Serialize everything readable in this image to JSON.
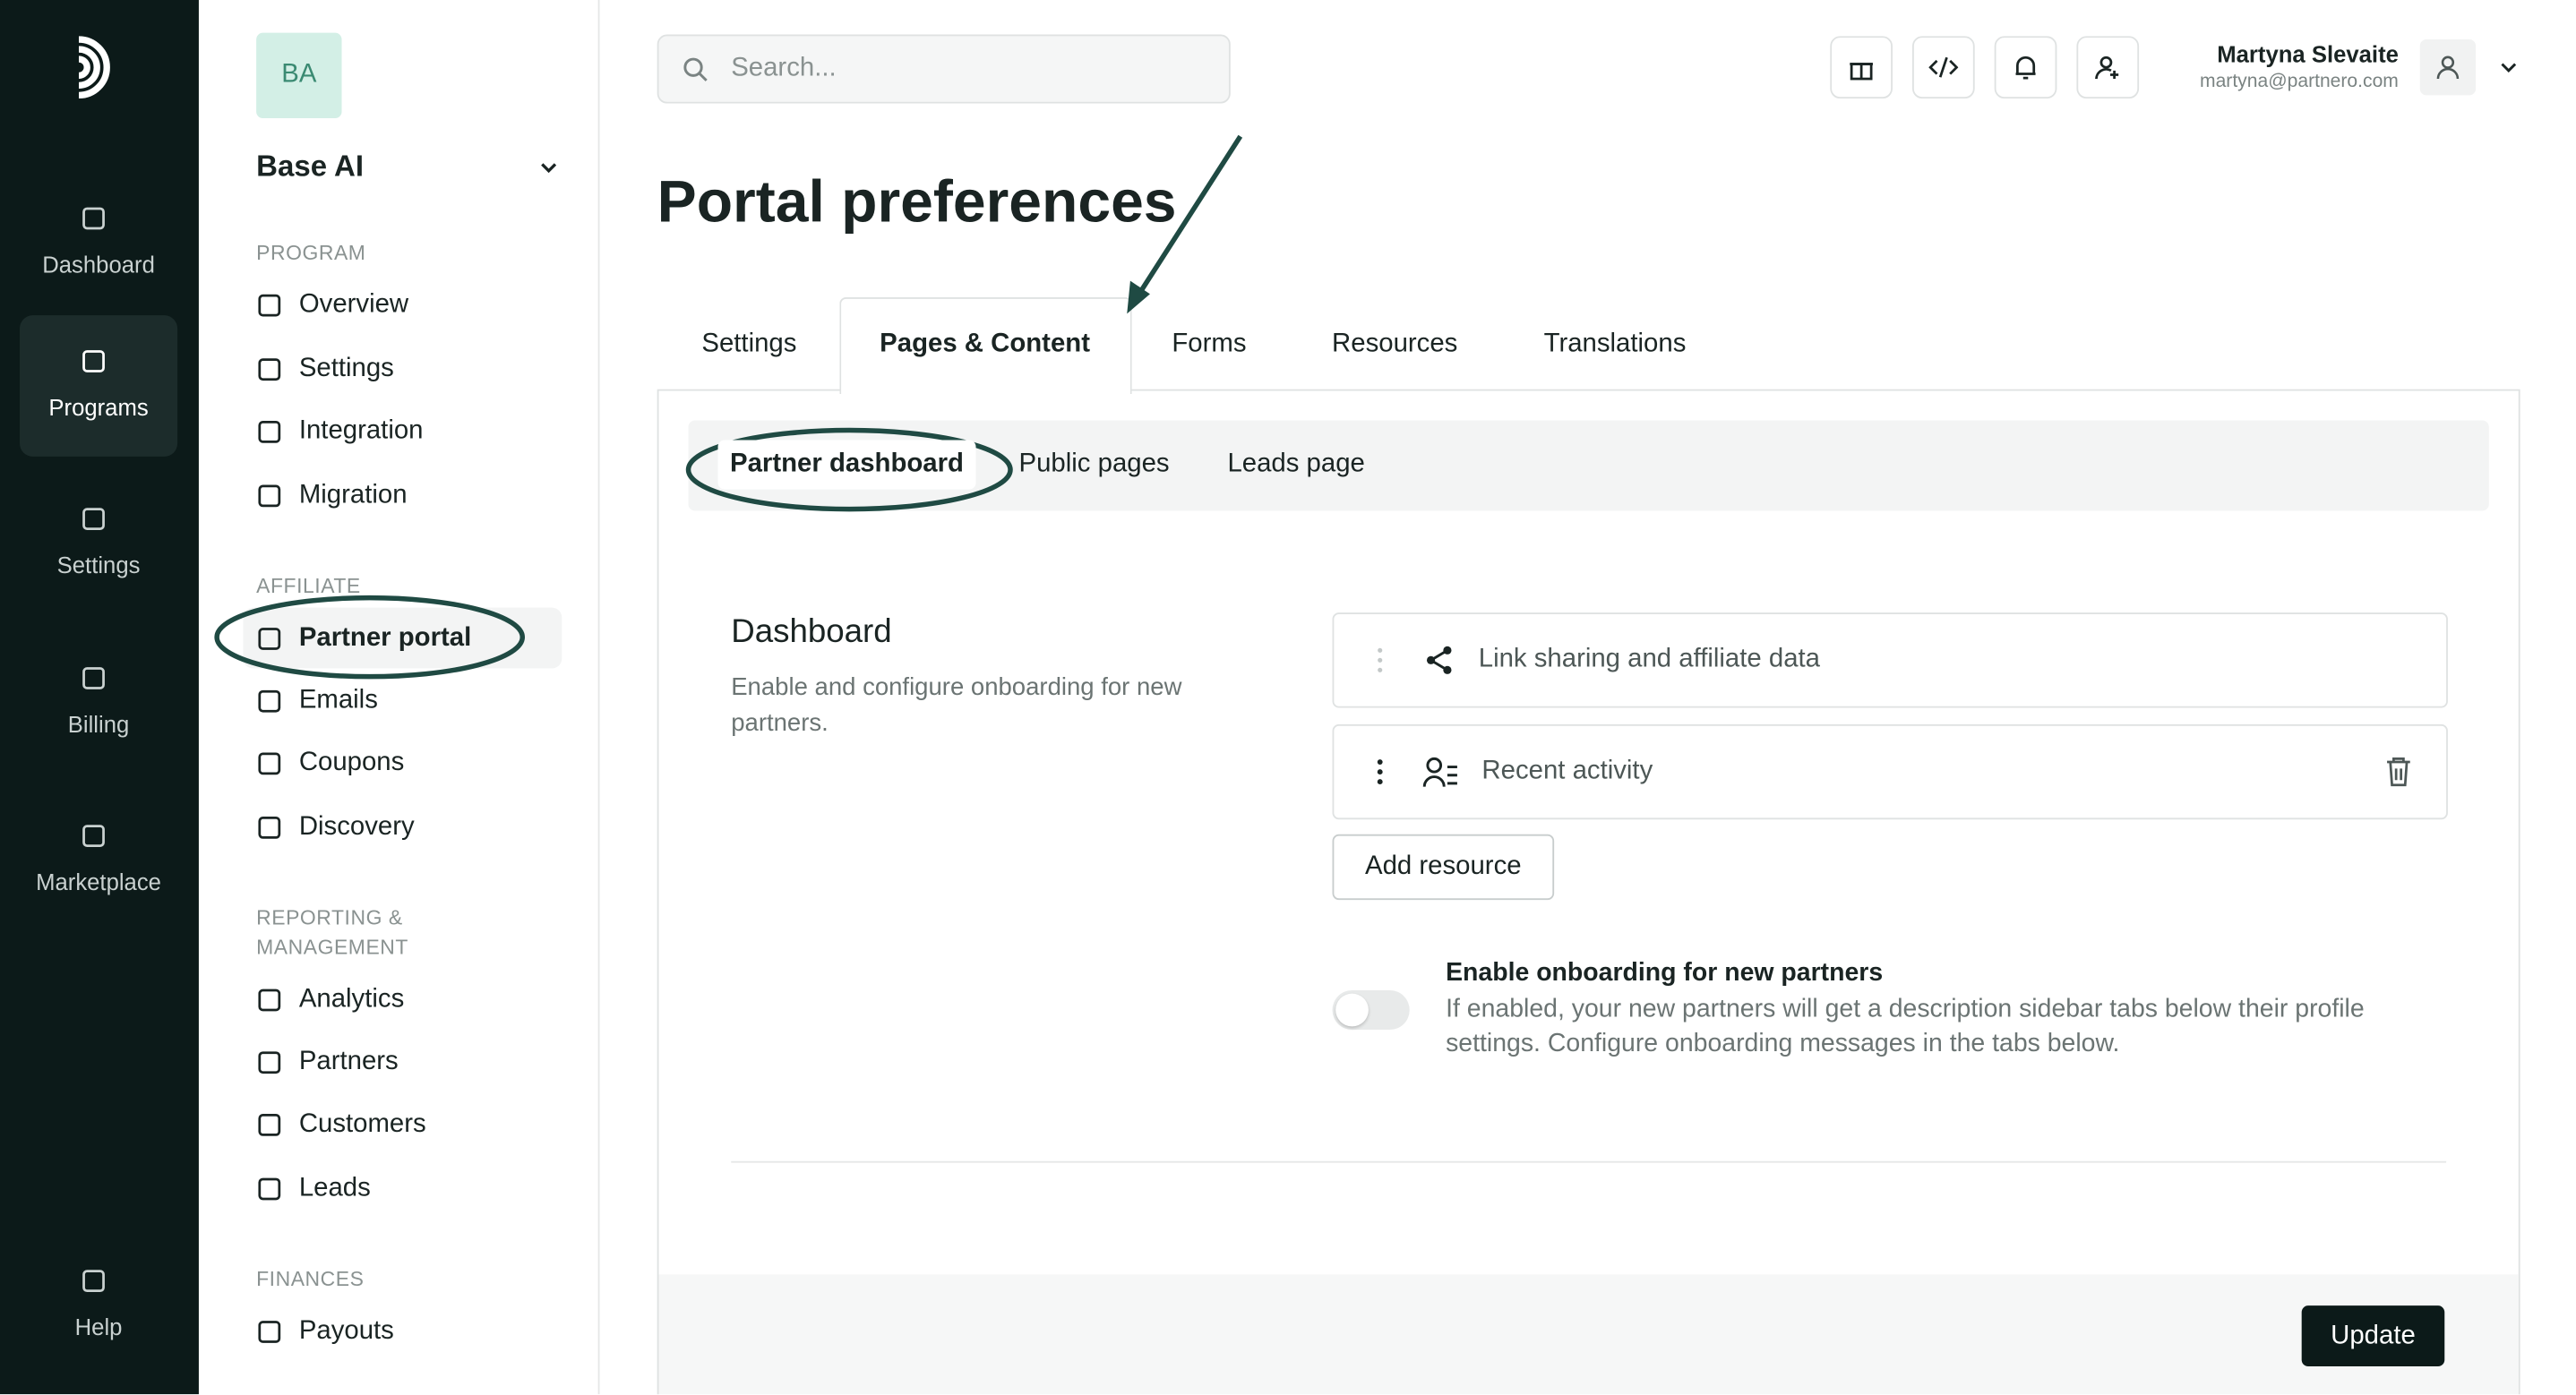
{
  "rail": {
    "items": [
      "Dashboard",
      "Programs",
      "Settings",
      "Billing",
      "Marketplace"
    ],
    "help": "Help"
  },
  "sidebar": {
    "workspace_initials": "BA",
    "workspace_name": "Base AI",
    "sections": [
      {
        "title": "PROGRAM",
        "items": [
          "Overview",
          "Settings",
          "Integration",
          "Migration"
        ]
      },
      {
        "title": "AFFILIATE",
        "items": [
          "Partner portal",
          "Emails",
          "Coupons",
          "Discovery"
        ]
      },
      {
        "title": "REPORTING & MANAGEMENT",
        "items": [
          "Analytics",
          "Partners",
          "Customers",
          "Leads"
        ]
      },
      {
        "title": "FINANCES",
        "items": [
          "Payouts"
        ]
      }
    ]
  },
  "header": {
    "search_placeholder": "Search...",
    "user_name": "Martyna Slevaite",
    "user_email": "martyna@partnero.com"
  },
  "page": {
    "title": "Portal preferences",
    "tabs": [
      "Settings",
      "Pages & Content",
      "Forms",
      "Resources",
      "Translations"
    ],
    "subtabs": [
      "Partner dashboard",
      "Public pages",
      "Leads page"
    ],
    "section_title": "Dashboard",
    "section_description": "Enable and configure onboarding for new partners.",
    "widgets": [
      "Link sharing and affiliate data",
      "Recent activity"
    ],
    "add_button": "Add resource",
    "toggle_title": "Enable onboarding for new partners",
    "toggle_description": "If enabled, your new partners will get a description sidebar tabs below their profile settings. Configure onboarding messages in the tabs below.",
    "update_button": "Update"
  }
}
